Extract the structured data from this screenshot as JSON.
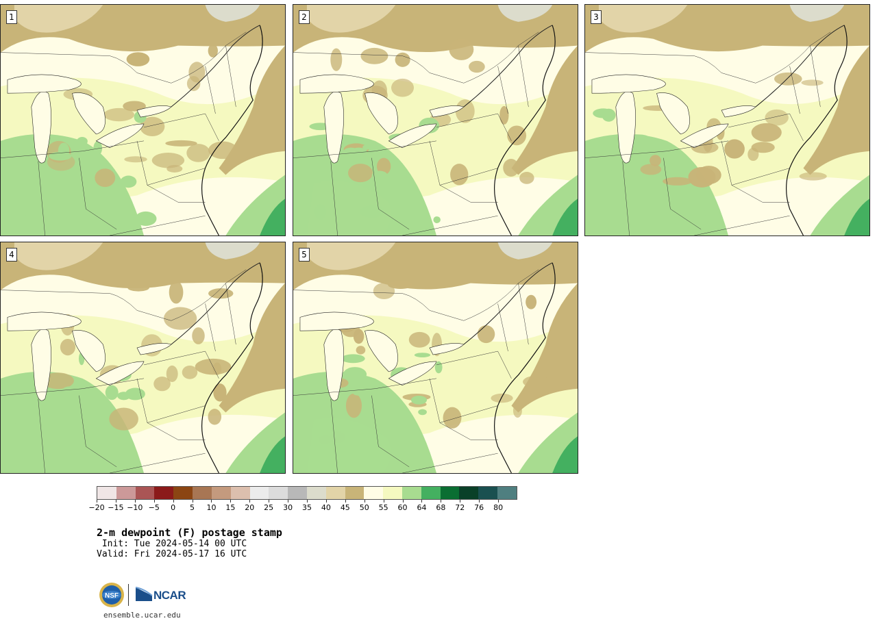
{
  "panels": [
    {
      "label": "1"
    },
    {
      "label": "2"
    },
    {
      "label": "3"
    },
    {
      "label": "4"
    },
    {
      "label": "5"
    }
  ],
  "colorbar": {
    "colors": [
      "#f0e6e6",
      "#cc9999",
      "#aa5555",
      "#8b1a1a",
      "#8b4513",
      "#a87654",
      "#c49a7e",
      "#dcbfae",
      "#ececec",
      "#dcdcdc",
      "#b8b8b8",
      "#dcdccc",
      "#e2d4a8",
      "#c8b478",
      "#fffde6",
      "#f5f9c0",
      "#a8dc90",
      "#44b060",
      "#0a6e32",
      "#0a4028",
      "#1a5050",
      "#4f7f80"
    ],
    "tick_labels": [
      "−20",
      "−15",
      "−10",
      "−5",
      "0",
      "5",
      "10",
      "15",
      "20",
      "25",
      "30",
      "35",
      "40",
      "45",
      "50",
      "55",
      "60",
      "64",
      "68",
      "72",
      "76",
      "80"
    ]
  },
  "title": "2-m dewpoint (F) postage stamp",
  "init_line": " Init: Tue 2024-05-14 00 UTC",
  "valid_line": "Valid: Fri 2024-05-17 16 UTC",
  "logos": {
    "ncar_text": "NCAR",
    "nsf_text": "NSF"
  },
  "footer_url": "ensemble.ucar.edu"
}
